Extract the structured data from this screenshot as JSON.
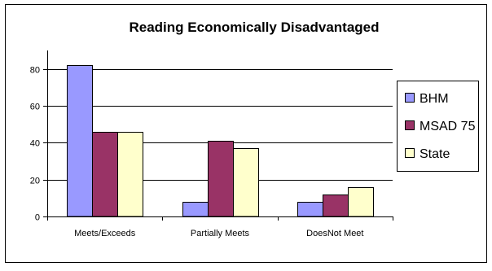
{
  "chart_data": {
    "type": "bar",
    "title": "Reading Economically Disadvantaged",
    "categories": [
      "Meets/Exceeds",
      "Partially Meets",
      "DoesNot Meet"
    ],
    "series": [
      {
        "name": "BHM",
        "color": "#9999FF",
        "values": [
          82,
          8,
          8
        ]
      },
      {
        "name": "MSAD 75",
        "color": "#993366",
        "values": [
          46,
          41,
          12
        ]
      },
      {
        "name": "State",
        "color": "#FFFFCC",
        "values": [
          46,
          37,
          16
        ]
      }
    ],
    "ylim": [
      0,
      90
    ],
    "yticks": [
      0,
      20,
      40,
      60,
      80
    ],
    "grid": true,
    "legend_position": "right"
  }
}
